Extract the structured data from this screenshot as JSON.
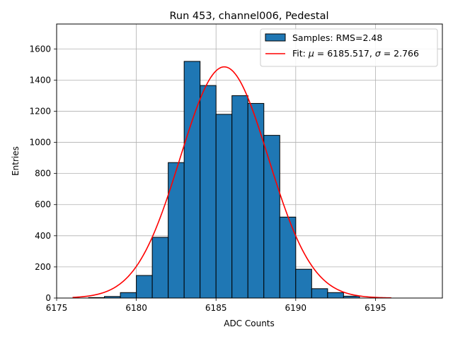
{
  "chart_data": {
    "type": "bar",
    "title": "Run 453, channel006, Pedestal",
    "xlabel": "ADC Counts",
    "ylabel": "Entries",
    "xlim": [
      6175,
      6199.2
    ],
    "ylim": [
      0,
      1760
    ],
    "grid": true,
    "legend_placement": "top-right",
    "x_ticks": [
      6175,
      6180,
      6185,
      6190,
      6195
    ],
    "y_ticks": [
      0,
      200,
      400,
      600,
      800,
      1000,
      1200,
      1400,
      1600
    ],
    "bins": {
      "edges": [
        6177,
        6178,
        6179,
        6180,
        6181,
        6182,
        6183,
        6184,
        6185,
        6186,
        6187,
        6188,
        6189,
        6190,
        6191,
        6192,
        6193,
        6194
      ],
      "counts": [
        3,
        10,
        35,
        145,
        390,
        870,
        1520,
        1365,
        1180,
        1300,
        1250,
        1045,
        520,
        185,
        60,
        35,
        12
      ]
    },
    "series": [
      {
        "name": "Samples: RMS=2.48",
        "type": "histogram",
        "color": "#1f77b4"
      },
      {
        "name": "Fit: μ = 6185.517, σ = 2.766",
        "type": "gaussian",
        "mu": 6185.517,
        "sigma": 2.766,
        "peak": 1485,
        "x_range": [
          6176,
          6196
        ],
        "color": "#ff0000"
      }
    ],
    "legend": {
      "samples_label_prefix": "Samples: RMS=2.48",
      "fit_label_prefix": "Fit: ",
      "mu_symbol": "μ",
      "mu_value": " = 6185.517, ",
      "sigma_symbol": "σ",
      "sigma_value": " = 2.766"
    }
  }
}
